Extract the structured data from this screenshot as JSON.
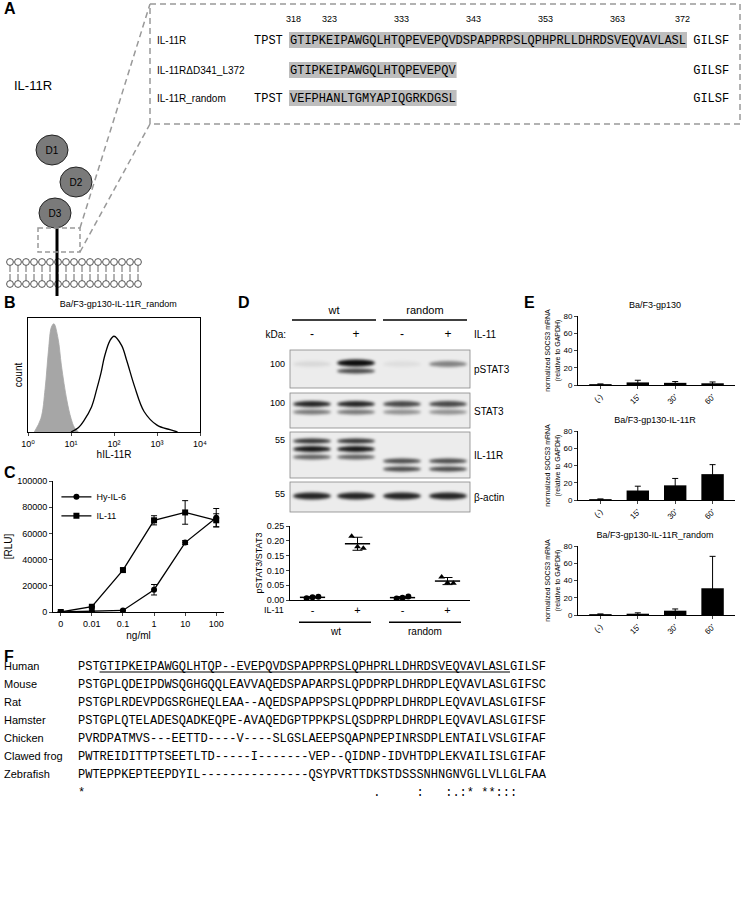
{
  "panel_labels": [
    "A",
    "B",
    "C",
    "D",
    "E",
    "F"
  ],
  "diagram_A": {
    "protein": "IL-11R",
    "domains": [
      "D1",
      "D2",
      "D3"
    ],
    "residue_numbers": [
      318,
      323,
      333,
      343,
      353,
      363,
      372
    ],
    "rows": [
      {
        "name": "IL-11R",
        "before": "TPST",
        "highlighted": "GTIPKEIPAWGQLHTQPEVEPQVDSPAPPRPSLQPHPRLLDHRDSVEQVAVLASL",
        "after": "GILSF"
      },
      {
        "name": "IL-11RΔD341_L372",
        "highlighted": "GTIPKEIPAWGQLHTQPEVEPQV",
        "after": "GILSF"
      },
      {
        "name": "IL-11R_random",
        "before": "TPST",
        "highlighted": "VEFPHANLTGMYAPIQGRKDGSL",
        "after": "GILSF"
      }
    ]
  },
  "blot_D": {
    "groups": [
      "wt",
      "random"
    ],
    "marker_unit": "kDa:",
    "treatment": "IL-11",
    "lanes": [
      "-",
      "+",
      "-",
      "+"
    ],
    "rows": [
      {
        "protein": "pSTAT3",
        "marker": 100
      },
      {
        "protein": "STAT3",
        "marker": 100
      },
      {
        "protein": "IL-11R",
        "marker": 55
      },
      {
        "protein": "β-actin",
        "marker": 55
      }
    ]
  },
  "chart_data": [
    {
      "type": "line",
      "title": "Ba/F3-gp130-IL-11R_random",
      "x_label": "hIL-11R",
      "y_label": "count",
      "log": "x",
      "xlim": [
        1,
        10000
      ],
      "xticks": [
        {
          "value": 1,
          "label": "10⁰"
        },
        {
          "value": 10,
          "label": "10¹"
        },
        {
          "value": 100,
          "label": "10²"
        },
        {
          "value": 1000,
          "label": "10³"
        },
        {
          "value": 10000,
          "label": "10⁴"
        }
      ],
      "ylim": [
        0,
        100
      ],
      "tick_labels": "x",
      "series": [
        {
          "type": "area",
          "color": "#a6a6a6",
          "x": [
            1.4,
            2,
            2.5,
            3,
            3.5,
            4,
            5,
            6,
            8,
            10,
            12,
            15
          ],
          "values": [
            0,
            12,
            38,
            72,
            92,
            95,
            82,
            58,
            28,
            12,
            4,
            0
          ]
        },
        {
          "type": "line",
          "color": "#000000",
          "x": [
            10,
            15,
            20,
            30,
            40,
            50,
            60,
            80,
            100,
            150,
            200,
            300,
            500,
            1000,
            2000,
            3000
          ],
          "values": [
            0,
            4,
            10,
            22,
            38,
            52,
            66,
            80,
            84,
            76,
            62,
            40,
            18,
            6,
            2,
            0
          ]
        }
      ]
    },
    {
      "type": "line",
      "x_label": "ng/ml",
      "y_label": "[RLU]",
      "categories": [
        "0",
        "0.01",
        "0.1",
        "1",
        "10",
        "100"
      ],
      "ylim": [
        0,
        100000
      ],
      "yticks": [
        0,
        20000,
        40000,
        60000,
        80000,
        100000
      ],
      "legend": "upper left",
      "series": [
        {
          "name": "Hy-IL-6",
          "marker": "circle",
          "color": "#000000",
          "values": [
            0,
            400,
            1200,
            17000,
            53000,
            72000
          ],
          "errors": [
            0,
            200,
            300,
            4000,
            1500,
            7000
          ]
        },
        {
          "name": "IL-11",
          "marker": "square",
          "color": "#000000",
          "values": [
            0,
            4000,
            32000,
            70000,
            76000,
            70000
          ],
          "errors": [
            0,
            300,
            1500,
            3500,
            9000,
            5000
          ]
        }
      ]
    },
    {
      "type": "scatter",
      "y_label": "pSTAT3/STAT3",
      "categories": [
        "-",
        "+",
        "-",
        "+"
      ],
      "ylim": [
        0,
        0.25
      ],
      "yticks": [
        {
          "value": 0,
          "label": "0.00"
        },
        0.05,
        {
          "value": 0.1,
          "label": "0.10"
        },
        0.15,
        {
          "value": 0.2,
          "label": "0.20"
        },
        0.25
      ],
      "annotations": [
        "IL-11"
      ],
      "groups": [
        {
          "label": "wt",
          "span": [
            0,
            1
          ]
        },
        {
          "label": "random",
          "span": [
            2,
            3
          ]
        }
      ],
      "series": [
        {
          "marker": "circle",
          "color": "#000000",
          "values": [
            0.009,
            null,
            0.008,
            null
          ],
          "errors": [
            0.0025,
            null,
            0.0035,
            null
          ],
          "points": [
            [
              0.006,
              0.009,
              0.011
            ],
            null,
            [
              0.005,
              0.008,
              0.012
            ],
            null
          ]
        },
        {
          "marker": "triangle",
          "color": "#000000",
          "values": [
            null,
            0.19,
            null,
            0.064
          ],
          "errors": [
            null,
            0.022,
            null,
            0.012
          ],
          "points": [
            null,
            [
              0.215,
              0.18,
              0.175
            ],
            null,
            [
              0.078,
              0.058,
              0.057
            ]
          ]
        }
      ]
    },
    {
      "type": "bar",
      "title": "Ba/F3-gp130",
      "y_label": [
        "normalized SOCS3 mRNA",
        "(relative to GAPDH)"
      ],
      "categories": [
        "(-)",
        "15'",
        "30'",
        "60'"
      ],
      "values": [
        1,
        3,
        2.5,
        2
      ],
      "errors": [
        0,
        2.5,
        1.5,
        1.5
      ],
      "color": "#000000",
      "ylim": [
        0,
        80
      ],
      "yticks": [
        0,
        20,
        40,
        60,
        80
      ]
    },
    {
      "type": "bar",
      "title": "Ba/F3-gp130-IL-11R",
      "y_label": [
        "normalized SOCS3 mRNA",
        "(relative to GAPDH)"
      ],
      "categories": [
        "(-)",
        "15'",
        "30'",
        "60'"
      ],
      "values": [
        1,
        11,
        17,
        30
      ],
      "errors": [
        0,
        5,
        8,
        11
      ],
      "color": "#000000",
      "ylim": [
        0,
        80
      ],
      "yticks": [
        0,
        20,
        40,
        60,
        80
      ]
    },
    {
      "type": "bar",
      "title": "Ba/F3-gp130-IL-11R_random",
      "y_label": [
        "normalized SOCS3 mRNA",
        "(relative to GAPDH)"
      ],
      "categories": [
        "(-)",
        "15'",
        "30'",
        "60'"
      ],
      "values": [
        1,
        1.5,
        5,
        31
      ],
      "errors": [
        0,
        1,
        2,
        37
      ],
      "color": "#000000",
      "ylim": [
        0,
        80
      ],
      "yticks": [
        0,
        20,
        40,
        60,
        80
      ]
    }
  ],
  "alignment_F": {
    "rows": [
      {
        "species": "Human",
        "before": "PST",
        "underlined": "GTIPKEIPAWGQLHTQP--EVEPQVDSPAPPRPSLQPHPRLLDHRDSVEQVAVLASL",
        "after": "GILSF"
      },
      {
        "species": "Mouse",
        "sequence": "PSTGPLQDEIPDWSQGHGQQLEAVVAQEDSPAPARPSLQPDPRPLDHRDPLEQVAVLASLGIFSC"
      },
      {
        "species": "Rat",
        "sequence": "PSTGPLRDEVPDGSRGHEQLEAA--AQEDSPAPPSPSLQPDPRPLDHRDPLEQVAVLASLGIFSF"
      },
      {
        "species": "Hamster",
        "sequence": "PSTGPLQTELADESQADKEQPE-AVAQEDGPTPPKPSLQSDPRPLDHRDPLEQVAVLASLGIFSF"
      },
      {
        "species": "Chicken",
        "sequence": "PVRDPATMVS---EETTD----V----SLGSLAEEPSQAPNPEPINRSDPLENTAILVSLGIFAF"
      },
      {
        "species": "Clawed frog",
        "sequence": "PWTREIDITTPTSEETLTD-----I-------VEP--QIDNP-IDVHTDPLEKVAILISLGIFAF"
      },
      {
        "species": "Zebrafish",
        "sequence": "PWTEPPKEPTEEPDYIL---------------QSYPVRTTDKSTDSSSNHNGNVGLLVLLGLFAA"
      }
    ],
    "consensus": "*                                        .     :   :.:* **:::"
  }
}
